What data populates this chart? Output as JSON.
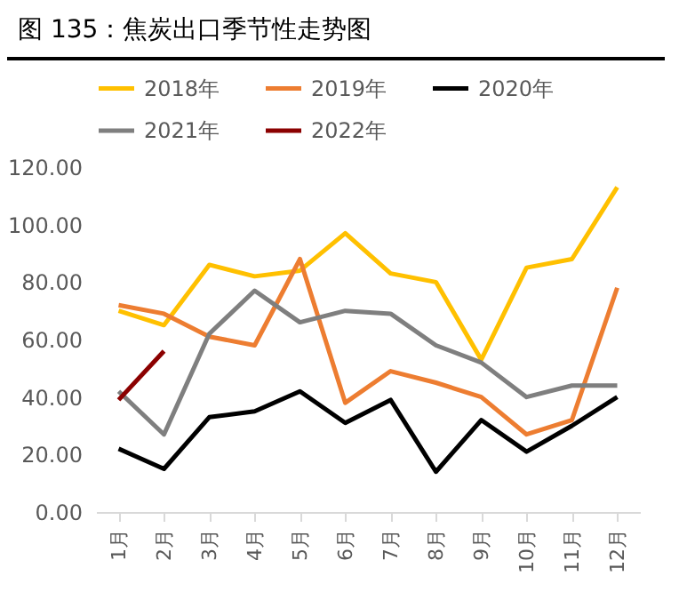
{
  "chart_data": {
    "type": "line",
    "title": "图 135：焦炭出口季节性走势图",
    "categories": [
      "1月",
      "2月",
      "3月",
      "4月",
      "5月",
      "6月",
      "7月",
      "8月",
      "9月",
      "10月",
      "11月",
      "12月"
    ],
    "series": [
      {
        "name": "2018年",
        "color": "#ffc000",
        "values": [
          70,
          65,
          86,
          82,
          84,
          97,
          83,
          80,
          53,
          85,
          88,
          113
        ]
      },
      {
        "name": "2019年",
        "color": "#ed7d31",
        "values": [
          72,
          69,
          61,
          58,
          88,
          38,
          49,
          45,
          40,
          27,
          32,
          78
        ]
      },
      {
        "name": "2020年",
        "color": "#000000",
        "values": [
          22,
          15,
          33,
          35,
          42,
          31,
          39,
          14,
          32,
          21,
          30,
          40
        ]
      },
      {
        "name": "2021年",
        "color": "#7f7f7f",
        "values": [
          42,
          27,
          62,
          77,
          66,
          70,
          69,
          58,
          52,
          40,
          44,
          44
        ]
      },
      {
        "name": "2022年",
        "color": "#8b0000",
        "values": [
          39,
          56,
          null,
          null,
          null,
          null,
          null,
          null,
          null,
          null,
          null,
          null
        ]
      }
    ],
    "ylim": [
      0,
      120
    ],
    "yticks": [
      {
        "value": 0,
        "label": "0.00"
      },
      {
        "value": 20,
        "label": "20.00"
      },
      {
        "value": 40,
        "label": "40.00"
      },
      {
        "value": 60,
        "label": "60.00"
      },
      {
        "value": 80,
        "label": "80.00"
      },
      {
        "value": 100,
        "label": "100.00"
      },
      {
        "value": 120,
        "label": "120.00"
      }
    ],
    "legend": "top",
    "grid": false,
    "marker": "none",
    "line_style": "solid"
  }
}
